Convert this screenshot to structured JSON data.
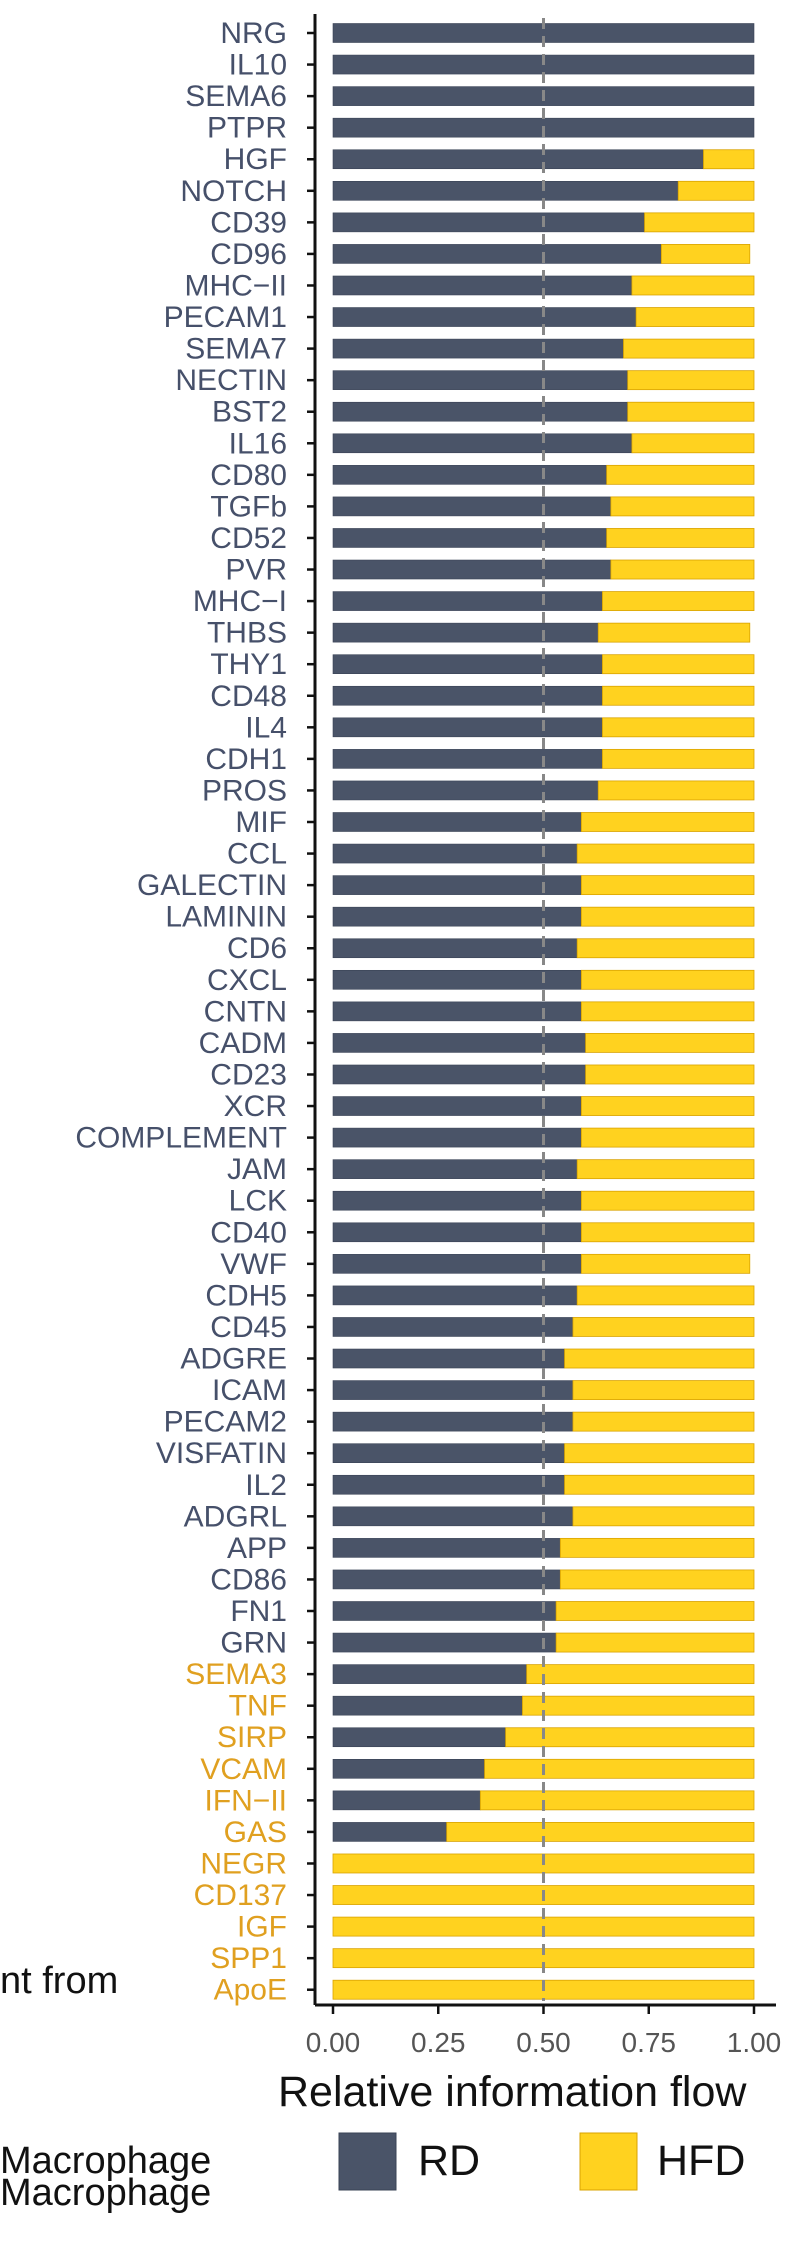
{
  "chart_data": {
    "type": "bar",
    "stacked": true,
    "orientation": "horizontal",
    "xlabel": "Relative information flow",
    "xlim": [
      0,
      1
    ],
    "xticks": [
      "0.00",
      "0.25",
      "0.50",
      "0.75",
      "1.00"
    ],
    "reference_line": 0.5,
    "grid": false,
    "legend_position": "bottom",
    "categories": [
      "NRG",
      "IL10",
      "SEMA6",
      "PTPR",
      "HGF",
      "NOTCH",
      "CD39",
      "CD96",
      "MHC−II",
      "PECAM1",
      "SEMA7",
      "NECTIN",
      "BST2",
      "IL16",
      "CD80",
      "TGFb",
      "CD52",
      "PVR",
      "MHC−I",
      "THBS",
      "THY1",
      "CD48",
      "IL4",
      "CDH1",
      "PROS",
      "MIF",
      "CCL",
      "GALECTIN",
      "LAMININ",
      "CD6",
      "CXCL",
      "CNTN",
      "CADM",
      "CD23",
      "XCR",
      "COMPLEMENT",
      "JAM",
      "LCK",
      "CD40",
      "VWF",
      "CDH5",
      "CD45",
      "ADGRE",
      "ICAM",
      "PECAM2",
      "VISFATIN",
      "IL2",
      "ADGRL",
      "APP",
      "CD86",
      "FN1",
      "GRN",
      "SEMA3",
      "TNF",
      "SIRP",
      "VCAM",
      "IFN−II",
      "GAS",
      "NEGR",
      "CD137",
      "IGF",
      "SPP1",
      "ApoE"
    ],
    "category_group": [
      "RD",
      "RD",
      "RD",
      "RD",
      "RD",
      "RD",
      "RD",
      "RD",
      "RD",
      "RD",
      "RD",
      "RD",
      "RD",
      "RD",
      "RD",
      "RD",
      "RD",
      "RD",
      "RD",
      "RD",
      "RD",
      "RD",
      "RD",
      "RD",
      "RD",
      "RD",
      "RD",
      "RD",
      "RD",
      "RD",
      "RD",
      "RD",
      "RD",
      "RD",
      "RD",
      "RD",
      "RD",
      "RD",
      "RD",
      "RD",
      "RD",
      "RD",
      "RD",
      "RD",
      "RD",
      "RD",
      "RD",
      "RD",
      "RD",
      "RD",
      "RD",
      "RD",
      "HFD",
      "HFD",
      "HFD",
      "HFD",
      "HFD",
      "HFD",
      "HFD",
      "HFD",
      "HFD",
      "HFD",
      "HFD"
    ],
    "series": [
      {
        "name": "RD",
        "color": "#4a5468",
        "values": [
          1.0,
          1.0,
          1.0,
          1.0,
          0.88,
          0.82,
          0.74,
          0.78,
          0.71,
          0.72,
          0.69,
          0.7,
          0.7,
          0.71,
          0.65,
          0.66,
          0.65,
          0.66,
          0.64,
          0.63,
          0.64,
          0.64,
          0.64,
          0.64,
          0.63,
          0.59,
          0.58,
          0.59,
          0.59,
          0.58,
          0.59,
          0.59,
          0.6,
          0.6,
          0.59,
          0.59,
          0.58,
          0.59,
          0.59,
          0.59,
          0.58,
          0.57,
          0.55,
          0.57,
          0.57,
          0.55,
          0.55,
          0.57,
          0.54,
          0.54,
          0.53,
          0.53,
          0.46,
          0.45,
          0.41,
          0.36,
          0.35,
          0.27,
          0,
          0,
          0,
          0,
          0
        ]
      },
      {
        "name": "HFD",
        "color": "#ffd21f",
        "values": [
          0,
          0,
          0,
          0,
          0.12,
          0.18,
          0.26,
          0.21,
          0.29,
          0.28,
          0.31,
          0.3,
          0.3,
          0.29,
          0.35,
          0.34,
          0.35,
          0.34,
          0.36,
          0.36,
          0.36,
          0.36,
          0.36,
          0.36,
          0.37,
          0.41,
          0.42,
          0.41,
          0.41,
          0.42,
          0.41,
          0.41,
          0.4,
          0.4,
          0.41,
          0.41,
          0.42,
          0.41,
          0.41,
          0.4,
          0.42,
          0.43,
          0.45,
          0.43,
          0.43,
          0.45,
          0.45,
          0.43,
          0.46,
          0.46,
          0.47,
          0.47,
          0.54,
          0.55,
          0.59,
          0.64,
          0.65,
          0.73,
          1.0,
          1.0,
          1.0,
          1.0,
          1.0
        ]
      }
    ]
  },
  "colors": {
    "rd_label": "#46506a",
    "hfd_label": "#e0a020",
    "axis": "#111111",
    "tick_label": "#555555",
    "reference_line": "#888888"
  },
  "fragments": {
    "left_note": "nt from",
    "macrophage_1": "Macrophage",
    "macrophage_2": "Macrophage"
  }
}
